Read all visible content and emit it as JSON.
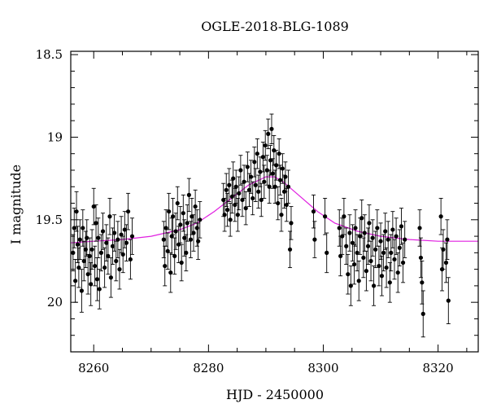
{
  "chart_data": {
    "type": "scatter",
    "title": "OGLE-2018-BLG-1089",
    "xlabel": "HJD - 2450000",
    "ylabel": "I magnitude",
    "xlim": [
      8256,
      8327
    ],
    "ylim": [
      20.3,
      18.48
    ],
    "y_inverted": true,
    "xticks": [
      8260,
      8280,
      8300,
      8320
    ],
    "yticks": [
      18.5,
      19,
      19.5,
      20
    ],
    "ytick_labels": [
      "18.5",
      "19",
      "19.5",
      "20"
    ],
    "grid": false,
    "colors": {
      "points": "#000000",
      "model": "#e020e0"
    },
    "series": [
      {
        "marker": "filled-circle",
        "errorbars": true,
        "points": [
          [
            8256.4,
            19.7,
            0.11
          ],
          [
            8256.6,
            19.55,
            0.12
          ],
          [
            8256.8,
            19.87,
            0.13
          ],
          [
            8257.0,
            19.45,
            0.12
          ],
          [
            8257.2,
            19.65,
            0.11
          ],
          [
            8257.4,
            19.79,
            0.12
          ],
          [
            8257.6,
            19.62,
            0.12
          ],
          [
            8257.9,
            19.93,
            0.13
          ],
          [
            8258.1,
            19.55,
            0.11
          ],
          [
            8258.3,
            19.75,
            0.12
          ],
          [
            8258.6,
            19.68,
            0.11
          ],
          [
            8258.8,
            19.61,
            0.11
          ],
          [
            8259.0,
            19.83,
            0.12
          ],
          [
            8259.3,
            19.72,
            0.11
          ],
          [
            8259.5,
            19.89,
            0.13
          ],
          [
            8259.7,
            19.68,
            0.12
          ],
          [
            8260.0,
            19.42,
            0.11
          ],
          [
            8260.2,
            19.78,
            0.12
          ],
          [
            8260.4,
            19.52,
            0.11
          ],
          [
            8260.6,
            19.86,
            0.13
          ],
          [
            8260.8,
            19.61,
            0.12
          ],
          [
            8261.0,
            19.92,
            0.12
          ],
          [
            8261.3,
            19.7,
            0.11
          ],
          [
            8261.6,
            19.57,
            0.11
          ],
          [
            8261.9,
            19.79,
            0.12
          ],
          [
            8262.2,
            19.64,
            0.11
          ],
          [
            8262.5,
            19.72,
            0.11
          ],
          [
            8262.8,
            19.48,
            0.11
          ],
          [
            8263.0,
            19.85,
            0.12
          ],
          [
            8263.3,
            19.66,
            0.11
          ],
          [
            8263.6,
            19.58,
            0.11
          ],
          [
            8263.9,
            19.75,
            0.12
          ],
          [
            8264.2,
            19.62,
            0.11
          ],
          [
            8264.5,
            19.8,
            0.12
          ],
          [
            8264.8,
            19.59,
            0.11
          ],
          [
            8265.1,
            19.71,
            0.11
          ],
          [
            8265.4,
            19.56,
            0.11
          ],
          [
            8265.7,
            19.64,
            0.11
          ],
          [
            8266.0,
            19.45,
            0.11
          ],
          [
            8266.4,
            19.74,
            0.12
          ],
          [
            8266.7,
            19.6,
            0.11
          ],
          [
            8272.2,
            19.62,
            0.11
          ],
          [
            8272.4,
            19.78,
            0.12
          ],
          [
            8272.6,
            19.55,
            0.11
          ],
          [
            8272.9,
            19.69,
            0.11
          ],
          [
            8273.1,
            19.45,
            0.11
          ],
          [
            8273.4,
            19.82,
            0.12
          ],
          [
            8273.6,
            19.6,
            0.11
          ],
          [
            8273.8,
            19.48,
            0.11
          ],
          [
            8274.1,
            19.72,
            0.11
          ],
          [
            8274.3,
            19.57,
            0.11
          ],
          [
            8274.6,
            19.4,
            0.1
          ],
          [
            8274.8,
            19.65,
            0.11
          ],
          [
            8275.1,
            19.53,
            0.11
          ],
          [
            8275.3,
            19.76,
            0.11
          ],
          [
            8275.6,
            19.46,
            0.11
          ],
          [
            8275.8,
            19.61,
            0.11
          ],
          [
            8276.1,
            19.7,
            0.11
          ],
          [
            8276.3,
            19.52,
            0.11
          ],
          [
            8276.6,
            19.35,
            0.1
          ],
          [
            8276.9,
            19.62,
            0.11
          ],
          [
            8277.1,
            19.48,
            0.11
          ],
          [
            8277.4,
            19.58,
            0.11
          ],
          [
            8277.7,
            19.42,
            0.1
          ],
          [
            8278.0,
            19.55,
            0.11
          ],
          [
            8278.2,
            19.63,
            0.11
          ],
          [
            8278.5,
            19.5,
            0.11
          ],
          [
            8282.6,
            19.38,
            0.1
          ],
          [
            8282.8,
            19.47,
            0.1
          ],
          [
            8283.1,
            19.32,
            0.1
          ],
          [
            8283.3,
            19.44,
            0.1
          ],
          [
            8283.6,
            19.29,
            0.1
          ],
          [
            8283.8,
            19.5,
            0.1
          ],
          [
            8284.1,
            19.36,
            0.1
          ],
          [
            8284.3,
            19.25,
            0.1
          ],
          [
            8284.6,
            19.41,
            0.1
          ],
          [
            8284.8,
            19.3,
            0.1
          ],
          [
            8285.1,
            19.47,
            0.1
          ],
          [
            8285.3,
            19.34,
            0.1
          ],
          [
            8285.6,
            19.2,
            0.09
          ],
          [
            8285.9,
            19.38,
            0.1
          ],
          [
            8286.2,
            19.27,
            0.1
          ],
          [
            8286.5,
            19.43,
            0.1
          ],
          [
            8286.8,
            19.18,
            0.09
          ],
          [
            8287.1,
            19.32,
            0.1
          ],
          [
            8287.4,
            19.24,
            0.1
          ],
          [
            8287.7,
            19.37,
            0.1
          ],
          [
            8288.0,
            19.15,
            0.09
          ],
          [
            8288.2,
            19.29,
            0.1
          ],
          [
            8288.5,
            19.1,
            0.09
          ],
          [
            8288.7,
            19.33,
            0.1
          ],
          [
            8289.0,
            19.21,
            0.09
          ],
          [
            8289.2,
            19.38,
            0.1
          ],
          [
            8289.5,
            19.12,
            0.09
          ],
          [
            8289.7,
            19.27,
            0.1
          ],
          [
            8289.9,
            19.05,
            0.09
          ],
          [
            8290.2,
            19.2,
            0.09
          ],
          [
            8290.4,
            18.98,
            0.09
          ],
          [
            8290.6,
            19.3,
            0.1
          ],
          [
            8290.8,
            19.14,
            0.09
          ],
          [
            8291.0,
            18.95,
            0.09
          ],
          [
            8291.2,
            19.22,
            0.09
          ],
          [
            8291.4,
            19.08,
            0.09
          ],
          [
            8291.6,
            19.3,
            0.1
          ],
          [
            8291.8,
            19.17,
            0.09
          ],
          [
            8292.1,
            19.4,
            0.1
          ],
          [
            8292.3,
            19.1,
            0.09
          ],
          [
            8292.5,
            19.26,
            0.09
          ],
          [
            8292.7,
            19.47,
            0.1
          ],
          [
            8292.9,
            19.19,
            0.09
          ],
          [
            8293.2,
            19.33,
            0.1
          ],
          [
            8293.4,
            19.24,
            0.09
          ],
          [
            8293.6,
            19.41,
            0.1
          ],
          [
            8293.9,
            19.3,
            0.1
          ],
          [
            8294.2,
            19.68,
            0.11
          ],
          [
            8294.4,
            19.52,
            0.1
          ],
          [
            8298.3,
            19.45,
            0.1
          ],
          [
            8298.5,
            19.62,
            0.11
          ],
          [
            8300.3,
            19.48,
            0.11
          ],
          [
            8300.6,
            19.7,
            0.12
          ],
          [
            8302.8,
            19.55,
            0.11
          ],
          [
            8303.0,
            19.72,
            0.12
          ],
          [
            8303.3,
            19.6,
            0.11
          ],
          [
            8303.6,
            19.48,
            0.11
          ],
          [
            8304.0,
            19.66,
            0.11
          ],
          [
            8304.3,
            19.83,
            0.12
          ],
          [
            8304.6,
            19.58,
            0.11
          ],
          [
            8304.8,
            19.9,
            0.12
          ],
          [
            8305.1,
            19.64,
            0.11
          ],
          [
            8305.4,
            19.77,
            0.12
          ],
          [
            8305.6,
            19.55,
            0.11
          ],
          [
            8305.9,
            19.7,
            0.11
          ],
          [
            8306.2,
            19.87,
            0.12
          ],
          [
            8306.4,
            19.6,
            0.11
          ],
          [
            8306.7,
            19.49,
            0.11
          ],
          [
            8307.0,
            19.73,
            0.12
          ],
          [
            8307.2,
            19.58,
            0.11
          ],
          [
            8307.5,
            19.81,
            0.12
          ],
          [
            8307.8,
            19.66,
            0.11
          ],
          [
            8308.0,
            19.52,
            0.11
          ],
          [
            8308.3,
            19.75,
            0.12
          ],
          [
            8308.6,
            19.61,
            0.11
          ],
          [
            8308.8,
            19.9,
            0.12
          ],
          [
            8309.1,
            19.68,
            0.11
          ],
          [
            8309.4,
            19.55,
            0.11
          ],
          [
            8309.7,
            19.78,
            0.12
          ],
          [
            8310.0,
            19.63,
            0.11
          ],
          [
            8310.2,
            19.84,
            0.12
          ],
          [
            8310.5,
            19.7,
            0.11
          ],
          [
            8310.8,
            19.57,
            0.11
          ],
          [
            8311.0,
            19.79,
            0.12
          ],
          [
            8311.3,
            19.62,
            0.11
          ],
          [
            8311.6,
            19.88,
            0.12
          ],
          [
            8311.8,
            19.7,
            0.11
          ],
          [
            8312.1,
            19.56,
            0.11
          ],
          [
            8312.4,
            19.74,
            0.12
          ],
          [
            8312.7,
            19.6,
            0.11
          ],
          [
            8313.0,
            19.82,
            0.12
          ],
          [
            8313.3,
            19.67,
            0.11
          ],
          [
            8313.6,
            19.54,
            0.11
          ],
          [
            8313.9,
            19.76,
            0.12
          ],
          [
            8314.2,
            19.62,
            0.11
          ],
          [
            8316.8,
            19.55,
            0.11
          ],
          [
            8317.0,
            19.73,
            0.12
          ],
          [
            8317.2,
            19.88,
            0.13
          ],
          [
            8317.4,
            20.07,
            0.14
          ],
          [
            8320.5,
            19.48,
            0.11
          ],
          [
            8320.7,
            19.8,
            0.13
          ],
          [
            8320.9,
            19.68,
            0.12
          ],
          [
            8321.4,
            19.76,
            0.12
          ],
          [
            8321.6,
            19.62,
            0.12
          ],
          [
            8321.8,
            19.99,
            0.14
          ]
        ]
      },
      {
        "marker": "line",
        "x": [
          8256,
          8260,
          8265,
          8270,
          8275,
          8278,
          8281,
          8284,
          8287,
          8290,
          8291.5,
          8293,
          8296,
          8299,
          8302,
          8306,
          8310,
          8315,
          8320,
          8327
        ],
        "y": [
          19.64,
          19.63,
          19.62,
          19.6,
          19.56,
          19.52,
          19.45,
          19.37,
          19.29,
          19.24,
          19.24,
          19.27,
          19.36,
          19.45,
          19.52,
          19.57,
          19.6,
          19.62,
          19.63,
          19.63
        ]
      }
    ]
  }
}
